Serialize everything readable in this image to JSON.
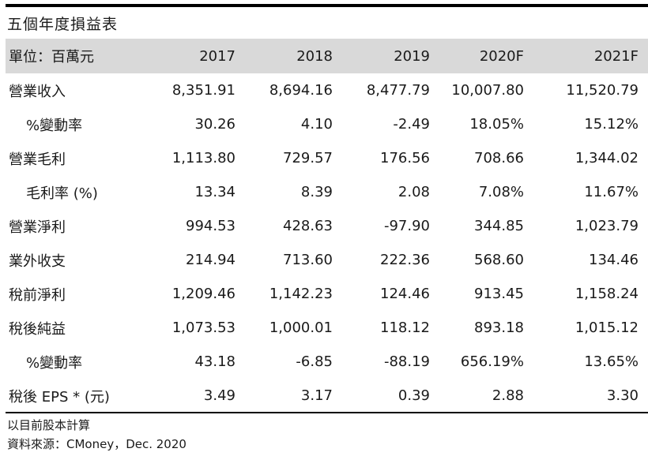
{
  "title": "五個年度損益表",
  "table": {
    "headers": [
      "單位：百萬元",
      "2017",
      "2018",
      "2019",
      "2020F",
      "2021F"
    ],
    "rows": [
      {
        "label": "營業收入",
        "indent": false,
        "values": [
          "8,351.91",
          "8,694.16",
          "8,477.79",
          "10,007.80",
          "11,520.79"
        ]
      },
      {
        "label": "%變動率",
        "indent": true,
        "values": [
          "30.26",
          "4.10",
          "-2.49",
          "18.05%",
          "15.12%"
        ]
      },
      {
        "label": "營業毛利",
        "indent": false,
        "values": [
          "1,113.80",
          "729.57",
          "176.56",
          "708.66",
          "1,344.02"
        ]
      },
      {
        "label": "毛利率 (%)",
        "indent": true,
        "values": [
          "13.34",
          "8.39",
          "2.08",
          "7.08%",
          "11.67%"
        ]
      },
      {
        "label": "營業淨利",
        "indent": false,
        "values": [
          "994.53",
          "428.63",
          "-97.90",
          "344.85",
          "1,023.79"
        ]
      },
      {
        "label": "業外收支",
        "indent": false,
        "values": [
          "214.94",
          "713.60",
          "222.36",
          "568.60",
          "134.46"
        ]
      },
      {
        "label": "稅前淨利",
        "indent": false,
        "values": [
          "1,209.46",
          "1,142.23",
          "124.46",
          "913.45",
          "1,158.24"
        ]
      },
      {
        "label": "稅後純益",
        "indent": false,
        "values": [
          "1,073.53",
          "1,000.01",
          "118.12",
          "893.18",
          "1,015.12"
        ]
      },
      {
        "label": "%變動率",
        "indent": true,
        "values": [
          "43.18",
          "-6.85",
          "-88.19",
          "656.19%",
          "13.65%"
        ]
      },
      {
        "label": "稅後 EPS * (元)",
        "indent": false,
        "values": [
          "3.49",
          "3.17",
          "0.39",
          "2.88",
          "3.30"
        ]
      }
    ]
  },
  "notes": {
    "basis": "以目前股本計算",
    "source": "資料來源：CMoney，Dec. 2020"
  },
  "colors": {
    "header_bg": "#d9d9d9",
    "rule": "#000000"
  }
}
